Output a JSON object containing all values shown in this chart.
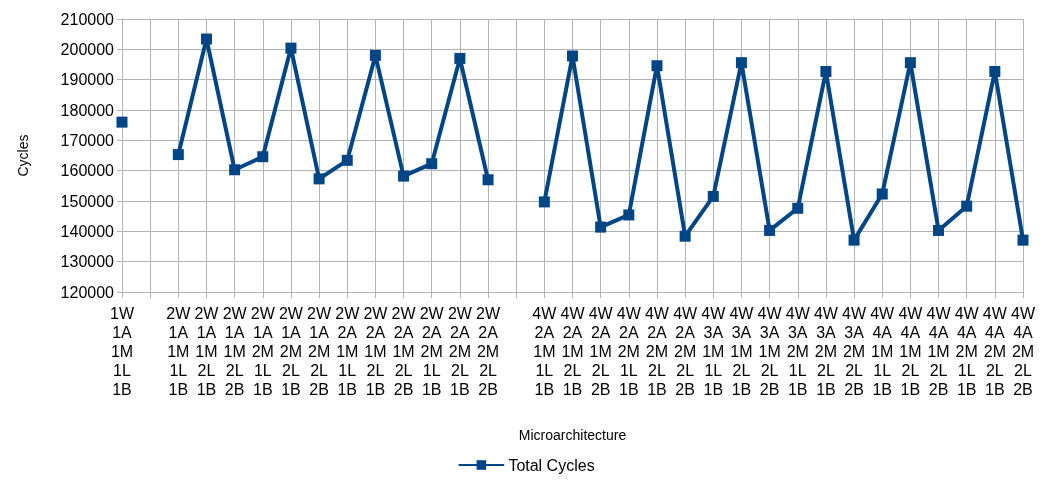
{
  "chart_data": {
    "type": "line",
    "xlabel": "Microarchitecture",
    "ylabel": "Cycles",
    "categories": [
      "1W\n1A\n1M\n1L\n1B",
      null,
      "2W\n1A\n1M\n1L\n1B",
      "2W\n1A\n1M\n2L\n1B",
      "2W\n1A\n1M\n2L\n2B",
      "2W\n1A\n2M\n1L\n1B",
      "2W\n1A\n2M\n2L\n1B",
      "2W\n1A\n2M\n2L\n2B",
      "2W\n2A\n1M\n1L\n1B",
      "2W\n2A\n1M\n2L\n1B",
      "2W\n2A\n1M\n2L\n2B",
      "2W\n2A\n2M\n1L\n1B",
      "2W\n2A\n2M\n2L\n1B",
      "2W\n2A\n2M\n2L\n2B",
      null,
      "4W\n2A\n1M\n1L\n1B",
      "4W\n2A\n1M\n2L\n1B",
      "4W\n2A\n1M\n2L\n2B",
      "4W\n2A\n2M\n1L\n1B",
      "4W\n2A\n2M\n2L\n1B",
      "4W\n2A\n2M\n2L\n2B",
      "4W\n3A\n1M\n1L\n1B",
      "4W\n3A\n1M\n2L\n1B",
      "4W\n3A\n1M\n2L\n2B",
      "4W\n3A\n2M\n1L\n1B",
      "4W\n3A\n2M\n2L\n1B",
      "4W\n3A\n2M\n2L\n2B",
      "4W\n4A\n1M\n1L\n1B",
      "4W\n4A\n1M\n2L\n1B",
      "4W\n4A\n1M\n2L\n2B",
      "4W\n4A\n2M\n1L\n1B",
      "4W\n4A\n2M\n2L\n1B",
      "4W\n4A\n2M\n2L\n2B"
    ],
    "series": [
      {
        "name": "Total Cycles",
        "color": "#004586",
        "values": [
          176000,
          null,
          165300,
          203400,
          160300,
          164600,
          200400,
          157300,
          163400,
          198000,
          158200,
          162300,
          197000,
          157000,
          null,
          149700,
          197800,
          141400,
          145400,
          194600,
          138400,
          151500,
          195600,
          140300,
          147600,
          192700,
          137100,
          152300,
          195600,
          140300,
          148300,
          192700,
          137100
        ]
      }
    ],
    "ylim": [
      120000,
      210000
    ],
    "yticks": [
      120000,
      130000,
      140000,
      150000,
      160000,
      170000,
      180000,
      190000,
      200000,
      210000
    ],
    "grid": true,
    "legend": "bottom",
    "marker": "square",
    "line_style": "solid"
  }
}
